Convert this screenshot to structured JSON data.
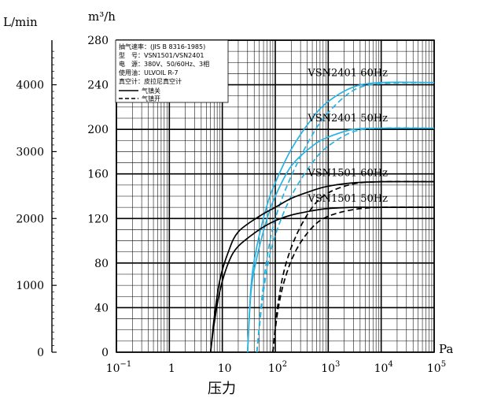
{
  "chart_data": {
    "type": "line",
    "title": "",
    "xlabel": "压力",
    "x_unit": "Pa",
    "ylabel_left": "L/min",
    "ylabel_right": "m³/h",
    "x_scale": "log",
    "xlim": [
      0.1,
      100000
    ],
    "ylim_m3h": [
      0,
      280
    ],
    "ylim_lmin": [
      0,
      4667
    ],
    "grid": true,
    "x_ticks": [
      {
        "base": "10",
        "exp": "−1"
      },
      {
        "base": "1",
        "exp": ""
      },
      {
        "base": "10",
        "exp": ""
      },
      {
        "base": "10",
        "exp": "2"
      },
      {
        "base": "10",
        "exp": "3"
      },
      {
        "base": "10",
        "exp": "4"
      },
      {
        "base": "10",
        "exp": "5"
      }
    ],
    "y_ticks_m3h": [
      "0",
      "40",
      "80",
      "120",
      "160",
      "200",
      "240",
      "280"
    ],
    "y_ticks_lmin": [
      "0",
      "1000",
      "2000",
      "3000",
      "4000"
    ],
    "legend": {
      "placement": "top-left",
      "lines": [
        "抽气速率：(JIS B 8316-1985)",
        "型　号：VSN1501/VSN2401",
        "电　源：380V、50/60Hz、3相",
        "使用油：ULVOIL R-7",
        "真空计：皮拉尼真空计"
      ],
      "entries": [
        {
          "label": "气镇关",
          "style": "solid"
        },
        {
          "label": "气镇开",
          "style": "dashed"
        }
      ]
    },
    "series": [
      {
        "name": "VSN2401 60Hz",
        "color": "#29b3e3",
        "ballast": "off",
        "x": [
          30,
          35,
          45,
          70,
          100,
          200,
          500,
          1000,
          3000,
          10000,
          100000
        ],
        "y": [
          0,
          60,
          95,
          132,
          152,
          182,
          210,
          225,
          238,
          242,
          242
        ]
      },
      {
        "name": "VSN2401 60Hz",
        "color": "#29b3e3",
        "ballast": "on",
        "x": [
          45,
          55,
          70,
          100,
          200,
          500,
          1000,
          3000,
          10000,
          100000
        ],
        "y": [
          0,
          45,
          85,
          120,
          158,
          195,
          215,
          235,
          241,
          242
        ]
      },
      {
        "name": "VSN2401 50Hz",
        "color": "#29b3e3",
        "ballast": "off",
        "x": [
          30,
          35,
          45,
          70,
          100,
          200,
          500,
          1000,
          3000,
          10000,
          100000
        ],
        "y": [
          0,
          55,
          85,
          120,
          140,
          167,
          185,
          193,
          200,
          201,
          201
        ]
      },
      {
        "name": "VSN2401 50Hz",
        "color": "#29b3e3",
        "ballast": "on",
        "x": [
          45,
          55,
          70,
          100,
          200,
          500,
          1000,
          3000,
          10000,
          100000
        ],
        "y": [
          0,
          40,
          75,
          105,
          140,
          170,
          185,
          198,
          201,
          201
        ]
      },
      {
        "name": "VSN1501 60Hz",
        "color": "#000000",
        "ballast": "off",
        "x": [
          6,
          7,
          9,
          13,
          20,
          50,
          100,
          200,
          500,
          1000,
          3000,
          10000,
          100000
        ],
        "y": [
          0,
          30,
          65,
          90,
          108,
          122,
          130,
          138,
          145,
          149,
          152,
          153,
          153
        ]
      },
      {
        "name": "VSN1501 60Hz",
        "color": "#000000",
        "ballast": "on",
        "x": [
          90,
          110,
          150,
          250,
          500,
          1000,
          3000,
          10000,
          100000
        ],
        "y": [
          0,
          40,
          75,
          105,
          130,
          143,
          151,
          153,
          153
        ]
      },
      {
        "name": "VSN1501 50Hz",
        "color": "#000000",
        "ballast": "off",
        "x": [
          6,
          7,
          9,
          13,
          20,
          50,
          100,
          200,
          500,
          1000,
          3000,
          10000,
          100000
        ],
        "y": [
          0,
          25,
          55,
          80,
          95,
          110,
          118,
          123,
          127,
          129,
          130,
          130,
          130
        ]
      },
      {
        "name": "VSN1501 50Hz",
        "color": "#000000",
        "ballast": "on",
        "x": [
          90,
          110,
          150,
          250,
          500,
          1000,
          3000,
          10000,
          100000
        ],
        "y": [
          0,
          35,
          65,
          92,
          112,
          122,
          128,
          130,
          130
        ]
      }
    ],
    "series_labels": [
      {
        "text": "VSN2401  60Hz",
        "at_x": 1000,
        "at_y": 248
      },
      {
        "text": "VSN2401  50Hz",
        "at_x": 1000,
        "at_y": 207
      },
      {
        "text": "VSN1501  60Hz",
        "at_x": 1000,
        "at_y": 158
      },
      {
        "text": "VSN1501  50Hz",
        "at_x": 1000,
        "at_y": 135
      }
    ]
  }
}
